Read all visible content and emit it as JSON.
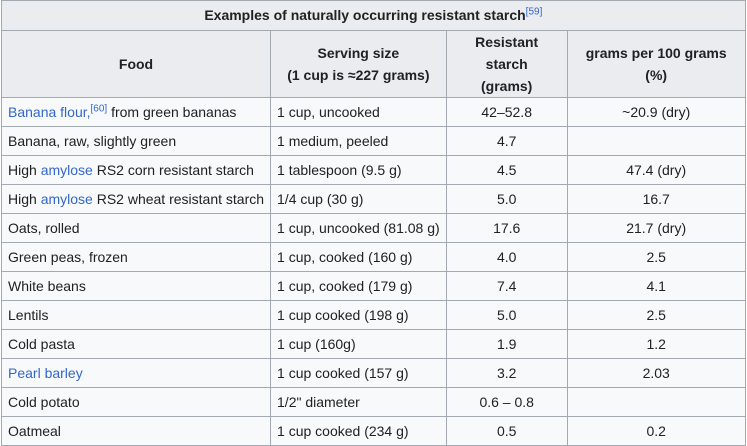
{
  "table": {
    "caption": "Examples of naturally occurring resistant starch",
    "caption_ref": "[59]",
    "headers": {
      "food": "Food",
      "serving_line1": "Serving size",
      "serving_line2": "(1 cup is ≈227 grams)",
      "rs_line1": "Resistant starch",
      "rs_line2": "(grams)",
      "per100": "grams per 100 grams (%)"
    },
    "rows": [
      {
        "food_pre": "",
        "food_link": "Banana flour,",
        "food_ref": "[60]",
        "food_post": " from green bananas",
        "serving": "1 cup, uncooked",
        "rs": "42–52.8",
        "per100": "~20.9 (dry)"
      },
      {
        "food_pre": "Banana, raw, slightly green",
        "food_link": "",
        "food_ref": "",
        "food_post": "",
        "serving": "1 medium, peeled",
        "rs": "4.7",
        "per100": ""
      },
      {
        "food_pre": "High ",
        "food_link": "amylose",
        "food_ref": "",
        "food_post": " RS2 corn resistant starch",
        "serving": "1 tablespoon (9.5 g)",
        "rs": "4.5",
        "per100": "47.4 (dry)"
      },
      {
        "food_pre": "High ",
        "food_link": "amylose",
        "food_ref": "",
        "food_post": " RS2 wheat resistant starch",
        "serving": "1/4 cup (30 g)",
        "rs": "5.0",
        "per100": "16.7"
      },
      {
        "food_pre": "Oats, rolled",
        "food_link": "",
        "food_ref": "",
        "food_post": "",
        "serving": "1 cup, uncooked (81.08 g)",
        "rs": "17.6",
        "per100": "21.7 (dry)"
      },
      {
        "food_pre": "Green peas, frozen",
        "food_link": "",
        "food_ref": "",
        "food_post": "",
        "serving": "1 cup, cooked (160 g)",
        "rs": "4.0",
        "per100": "2.5"
      },
      {
        "food_pre": "White beans",
        "food_link": "",
        "food_ref": "",
        "food_post": "",
        "serving": "1 cup, cooked (179 g)",
        "rs": "7.4",
        "per100": "4.1"
      },
      {
        "food_pre": "Lentils",
        "food_link": "",
        "food_ref": "",
        "food_post": "",
        "serving": "1 cup cooked (198 g)",
        "rs": "5.0",
        "per100": "2.5"
      },
      {
        "food_pre": "Cold pasta",
        "food_link": "",
        "food_ref": "",
        "food_post": "",
        "serving": "1 cup (160g)",
        "rs": "1.9",
        "per100": "1.2"
      },
      {
        "food_pre": "",
        "food_link": "Pearl barley",
        "food_ref": "",
        "food_post": "",
        "serving": "1 cup cooked (157 g)",
        "rs": "3.2",
        "per100": "2.03"
      },
      {
        "food_pre": "Cold potato",
        "food_link": "",
        "food_ref": "",
        "food_post": "",
        "serving": "1/2\" diameter",
        "rs": "0.6 – 0.8",
        "per100": ""
      },
      {
        "food_pre": "Oatmeal",
        "food_link": "",
        "food_ref": "",
        "food_post": "",
        "serving": "1 cup cooked (234 g)",
        "rs": "0.5",
        "per100": "0.2"
      }
    ]
  },
  "colors": {
    "link": "#3366cc",
    "header_bg": "#eaecf0",
    "cell_bg": "#f8f9fa",
    "border": "#a2a9b1"
  }
}
